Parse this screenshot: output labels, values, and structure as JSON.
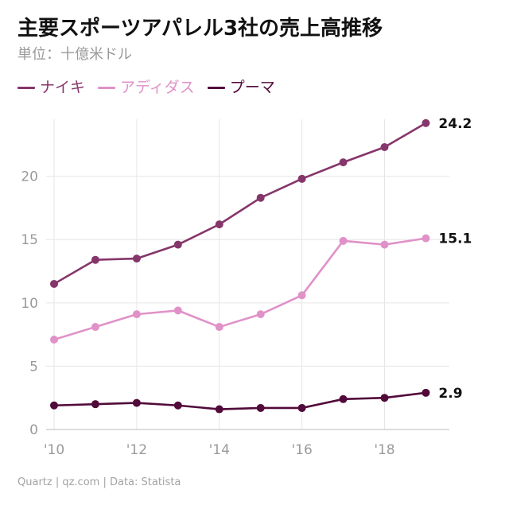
{
  "chart_data": {
    "type": "line",
    "title": "主要スポーツアパレル3社の売上高推移",
    "subtitle": "単位：十億米ドル",
    "x": [
      2010,
      2011,
      2012,
      2013,
      2014,
      2015,
      2016,
      2017,
      2018,
      2019
    ],
    "x_tick_values": [
      2010,
      2012,
      2014,
      2016,
      2018
    ],
    "x_tick_labels": [
      "'10",
      "'12",
      "'14",
      "'16",
      "'18"
    ],
    "y_ticks": [
      0,
      5,
      10,
      15,
      20
    ],
    "ylim": [
      0,
      24.5
    ],
    "xlim": [
      2010,
      2019.3
    ],
    "grid": true,
    "legend_position": "top-left",
    "series": [
      {
        "name": "ナイキ",
        "color": "#86366a",
        "values": [
          11.5,
          13.4,
          13.5,
          14.6,
          16.2,
          18.3,
          19.8,
          21.1,
          22.3,
          24.2
        ],
        "end_label": "24.2"
      },
      {
        "name": "アディダス",
        "color": "#e092c8",
        "values": [
          7.1,
          8.1,
          9.1,
          9.4,
          8.1,
          9.1,
          10.6,
          14.9,
          14.6,
          15.1
        ],
        "end_label": "15.1"
      },
      {
        "name": "プーマ",
        "color": "#510a3a",
        "values": [
          1.9,
          2.0,
          2.1,
          1.9,
          1.6,
          1.7,
          1.7,
          2.4,
          2.5,
          2.9
        ],
        "end_label": "2.9"
      }
    ]
  },
  "footer": "Quartz | qz.com | Data: Statista",
  "colors": {
    "grid": "#e6e6e6",
    "axis": "#c8c8c8",
    "muted_text": "#9a9a9a"
  }
}
